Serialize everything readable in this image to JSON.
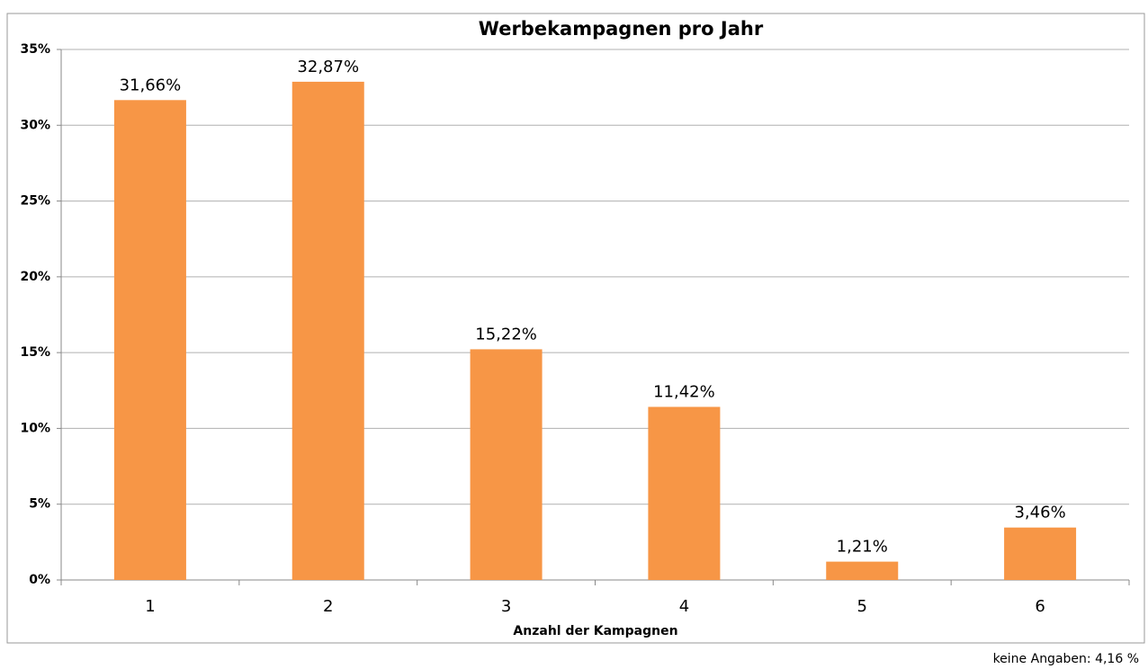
{
  "chart_data": {
    "type": "bar",
    "title": "Werbekampagnen pro Jahr",
    "x_label": "Anzahl der Kampagnen",
    "categories": [
      "1",
      "2",
      "3",
      "4",
      "5",
      "6"
    ],
    "values": [
      31.66,
      32.87,
      15.22,
      11.42,
      1.21,
      3.46
    ],
    "value_labels": [
      "31,66%",
      "32,87%",
      "15,22%",
      "11,42%",
      "1,21%",
      "3,46%"
    ],
    "color": "#f79646",
    "ylim": [
      0,
      35
    ],
    "yticks": [
      {
        "value": 0,
        "label": "0%"
      },
      {
        "value": 5,
        "label": "5%"
      },
      {
        "value": 10,
        "label": "10%"
      },
      {
        "value": 15,
        "label": "15%"
      },
      {
        "value": 20,
        "label": "20%"
      },
      {
        "value": 25,
        "label": "25%"
      },
      {
        "value": 30,
        "label": "30%"
      },
      {
        "value": 35,
        "label": "35%"
      }
    ],
    "grid": true,
    "footnote": "keine Angaben: 4,16 %"
  }
}
